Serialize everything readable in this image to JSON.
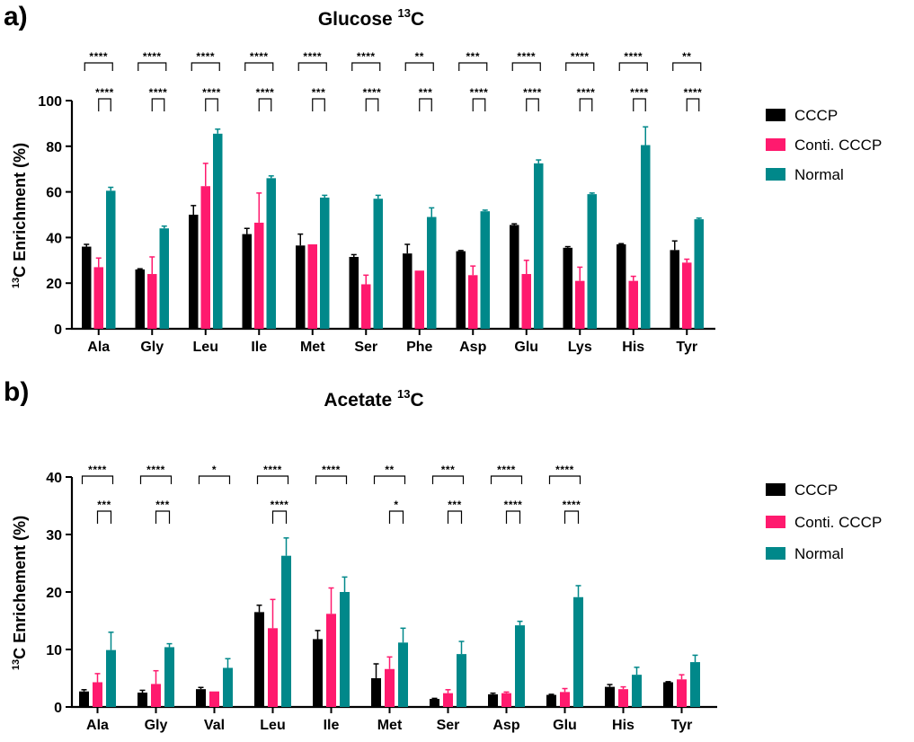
{
  "colors": {
    "CCCP": "#000000",
    "Conti. CCCP": "#ff1a6e",
    "Normal": "#00888a"
  },
  "chart_data": [
    {
      "type": "bar",
      "panel_label": "a)",
      "title": "Glucose",
      "title_superscript": "13",
      "title_suffix": "C",
      "ylabel_superscript": "13",
      "ylabel": "C Enrichment (%)",
      "ylim": [
        0,
        100
      ],
      "yticks": [
        "0",
        "20",
        "40",
        "60",
        "80",
        "100"
      ],
      "categories": [
        "Ala",
        "Gly",
        "Leu",
        "Ile",
        "Met",
        "Ser",
        "Phe",
        "Asp",
        "Glu",
        "Lys",
        "His",
        "Tyr"
      ],
      "series": [
        {
          "name": "CCCP",
          "values": [
            36,
            26,
            50,
            41.5,
            36.5,
            31.5,
            33,
            34,
            45.5,
            35.5,
            37,
            34.5
          ],
          "errors": [
            1,
            0.3,
            4,
            2.5,
            5,
            1,
            4,
            0.3,
            0.5,
            0.5,
            0.3,
            4
          ]
        },
        {
          "name": "Conti. CCCP",
          "values": [
            27,
            24,
            62.5,
            46.5,
            37,
            19.5,
            25.5,
            23.5,
            24,
            21,
            21,
            29
          ],
          "errors": [
            4,
            7.5,
            10,
            13,
            0,
            4,
            0,
            4,
            6,
            6,
            2,
            1.5
          ]
        },
        {
          "name": "Normal",
          "values": [
            60.5,
            44,
            85.5,
            66,
            57.5,
            57,
            49,
            51.5,
            72.5,
            59,
            80.5,
            48
          ],
          "errors": [
            1.5,
            1,
            2,
            1,
            1,
            1.5,
            4,
            0.5,
            1.5,
            0.5,
            8,
            0.5
          ]
        }
      ],
      "significance": [
        [
          "****",
          "****"
        ],
        [
          "****",
          "****"
        ],
        [
          "****",
          "****"
        ],
        [
          "****",
          "****"
        ],
        [
          "****",
          "***"
        ],
        [
          "****",
          "****"
        ],
        [
          "**",
          "***"
        ],
        [
          "***",
          "****"
        ],
        [
          "****",
          "****"
        ],
        [
          "****",
          "****"
        ],
        [
          "****",
          "****"
        ],
        [
          "**",
          "****"
        ]
      ],
      "legend": [
        "CCCP",
        "Conti. CCCP",
        "Normal"
      ]
    },
    {
      "type": "bar",
      "panel_label": "b)",
      "title": "Acetate",
      "title_superscript": "13",
      "title_suffix": "C",
      "ylabel_superscript": "13",
      "ylabel": "C Enrichement (%)",
      "ylim": [
        0,
        40
      ],
      "yticks": [
        "0",
        "10",
        "20",
        "30",
        "40"
      ],
      "categories": [
        "Ala",
        "Gly",
        "Val",
        "Leu",
        "Ile",
        "Met",
        "Ser",
        "Asp",
        "Glu",
        "His",
        "Tyr"
      ],
      "series": [
        {
          "name": "CCCP",
          "values": [
            2.7,
            2.5,
            3.1,
            16.5,
            11.8,
            5,
            1.4,
            2.2,
            2.1,
            3.5,
            4.3
          ],
          "errors": [
            0.3,
            0.4,
            0.3,
            1.2,
            1.5,
            2.5,
            0.1,
            0.2,
            0.1,
            0.4,
            0.1
          ]
        },
        {
          "name": "Conti. CCCP",
          "values": [
            4.3,
            4,
            2.7,
            13.7,
            16.2,
            6.6,
            2.4,
            2.4,
            2.6,
            3.1,
            4.8
          ],
          "errors": [
            1.5,
            2.3,
            0,
            5,
            4.5,
            2.1,
            0.6,
            0.2,
            0.6,
            0.4,
            0.8
          ]
        },
        {
          "name": "Normal",
          "values": [
            9.9,
            10.4,
            6.8,
            26.3,
            20,
            11.2,
            9.2,
            14.2,
            19.1,
            5.6,
            7.8
          ],
          "errors": [
            3.1,
            0.6,
            1.6,
            3.1,
            2.6,
            2.5,
            2.2,
            0.7,
            2,
            1.3,
            1.2
          ]
        }
      ],
      "significance": [
        [
          "****",
          "***"
        ],
        [
          "****",
          "***"
        ],
        [
          "*",
          null
        ],
        [
          "****",
          "****"
        ],
        [
          "****",
          null
        ],
        [
          "**",
          "*"
        ],
        [
          "***",
          "***"
        ],
        [
          "****",
          "****"
        ],
        [
          "****",
          "****"
        ],
        [
          null,
          null
        ],
        [
          null,
          null
        ]
      ],
      "legend": [
        "CCCP",
        "Conti. CCCP",
        "Normal"
      ]
    }
  ]
}
